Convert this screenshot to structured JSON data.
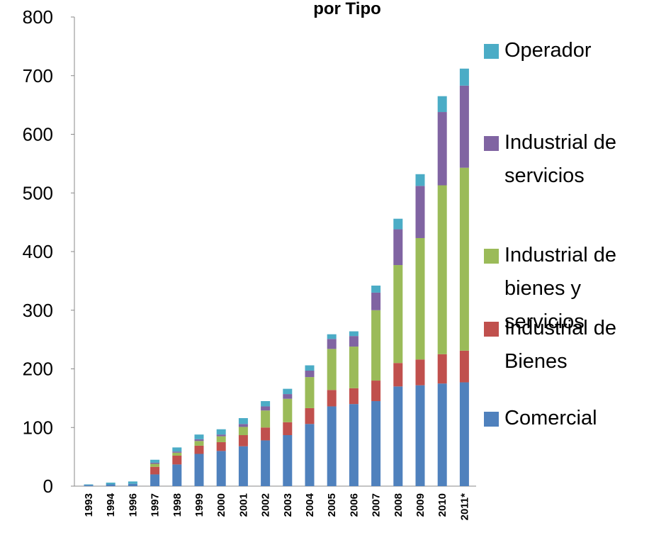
{
  "chart_data": {
    "type": "bar",
    "stacked": true,
    "title": "por Tipo",
    "categories": [
      "1993",
      "1994",
      "1996",
      "1997",
      "1998",
      "1999",
      "2000",
      "2001",
      "2002",
      "2003",
      "2004",
      "2005",
      "2006",
      "2007",
      "2008",
      "2009",
      "2010",
      "2011*"
    ],
    "series": [
      {
        "name": "Comercial",
        "color": "#4f81bd",
        "values": [
          2,
          3,
          4,
          20,
          37,
          55,
          60,
          68,
          78,
          87,
          106,
          136,
          140,
          145,
          170,
          172,
          175,
          177
        ]
      },
      {
        "name": "Industrial de Bienes",
        "color": "#c0504d",
        "values": [
          0,
          0,
          0,
          13,
          15,
          14,
          15,
          19,
          22,
          22,
          27,
          28,
          27,
          35,
          40,
          44,
          50,
          54
        ]
      },
      {
        "name": "Industrial de bienes y servicios",
        "color": "#9bbb59",
        "values": [
          0,
          0,
          0,
          5,
          5,
          8,
          10,
          14,
          29,
          40,
          53,
          70,
          71,
          120,
          167,
          207,
          288,
          312
        ]
      },
      {
        "name": "Industrial de servicios",
        "color": "#8064a2",
        "values": [
          0,
          0,
          0,
          2,
          2,
          3,
          3,
          5,
          7,
          8,
          11,
          17,
          18,
          30,
          61,
          89,
          125,
          140
        ]
      },
      {
        "name": "Operador",
        "color": "#4bacc6",
        "values": [
          1,
          3,
          4,
          5,
          7,
          8,
          9,
          10,
          9,
          9,
          9,
          8,
          8,
          12,
          18,
          20,
          27,
          29
        ]
      }
    ],
    "ylim": [
      0,
      800
    ],
    "yticks": [
      0,
      100,
      200,
      300,
      400,
      500,
      600,
      700,
      800
    ],
    "legend": "right"
  }
}
